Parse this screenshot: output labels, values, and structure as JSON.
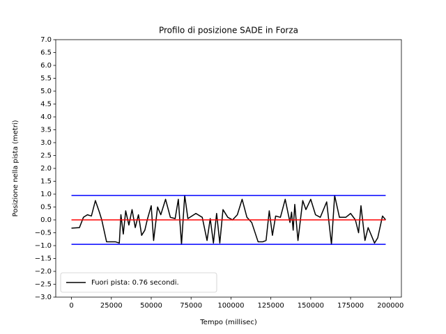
{
  "chart_data": {
    "type": "line",
    "title": "Profilo di posizione SADE in Forza",
    "xlabel": "Tempo (millisec)",
    "ylabel": "Posizione nella pista (metri)",
    "xlim": [
      -9850,
      206850
    ],
    "ylim": [
      -3,
      7
    ],
    "xticks": [
      0,
      25000,
      50000,
      75000,
      100000,
      125000,
      150000,
      175000,
      200000
    ],
    "yticks": [
      {
        "value": -3,
        "label": "−3.0"
      },
      {
        "value": -2.5,
        "label": "−2.5"
      },
      {
        "value": -2,
        "label": "−2.0"
      },
      {
        "value": -1.5,
        "label": "−1.5"
      },
      {
        "value": -1,
        "label": "−1.0"
      },
      {
        "value": -0.5,
        "label": "−0.5"
      },
      {
        "value": 0,
        "label": "0.0"
      },
      {
        "value": 0.5,
        "label": "0.5"
      },
      {
        "value": 1,
        "label": "1.0"
      },
      {
        "value": 1.5,
        "label": "1.5"
      },
      {
        "value": 2,
        "label": "2.0"
      },
      {
        "value": 2.5,
        "label": "2.5"
      },
      {
        "value": 3,
        "label": "3.0"
      },
      {
        "value": 3.5,
        "label": "3.5"
      },
      {
        "value": 4,
        "label": "4.0"
      },
      {
        "value": 4.5,
        "label": "4.5"
      },
      {
        "value": 5,
        "label": "5.0"
      },
      {
        "value": 5.5,
        "label": "5.5"
      },
      {
        "value": 6,
        "label": "6.0"
      },
      {
        "value": 6.5,
        "label": "6.5"
      },
      {
        "value": 7,
        "label": "7.0"
      }
    ],
    "legend": "lower left",
    "series": [
      {
        "name": "Fuori pista: 0.76 secondi.",
        "color": "#000000",
        "x": [
          0,
          5000,
          7500,
          10000,
          12500,
          15000,
          17500,
          19000,
          22000,
          25000,
          27500,
          30000,
          31000,
          32500,
          34000,
          36000,
          38000,
          40000,
          42000,
          44000,
          46000,
          47500,
          50000,
          51500,
          54000,
          56000,
          59000,
          62000,
          65000,
          67000,
          69000,
          71000,
          73000,
          78000,
          82000,
          85000,
          87000,
          89000,
          91000,
          93000,
          95000,
          98000,
          101000,
          104000,
          107000,
          110000,
          113000,
          117000,
          120000,
          122000,
          124000,
          126000,
          128000,
          131000,
          134000,
          136000,
          137000,
          138000,
          139000,
          140000,
          142000,
          145000,
          147000,
          150000,
          153000,
          156000,
          160000,
          163000,
          165000,
          168000,
          172000,
          175000,
          178000,
          180000,
          181500,
          184000,
          186000,
          188000,
          190000,
          192000,
          195000,
          197000
        ],
        "values": [
          -0.32,
          -0.3,
          0.1,
          0.2,
          0.15,
          0.75,
          0.3,
          0,
          -0.85,
          -0.85,
          -0.85,
          -0.9,
          0.2,
          -0.55,
          0.35,
          -0.2,
          0.4,
          -0.3,
          0.2,
          -0.6,
          -0.4,
          0,
          0.55,
          -0.8,
          0.5,
          0.2,
          0.8,
          0.1,
          0.05,
          0.8,
          -0.95,
          0.95,
          0.05,
          0.25,
          0.1,
          -0.8,
          0.05,
          -0.9,
          0.25,
          -0.9,
          0.4,
          0.1,
          0,
          0.2,
          0.8,
          0.1,
          -0.1,
          -0.85,
          -0.85,
          -0.8,
          0.35,
          -0.6,
          0.15,
          0.1,
          0.8,
          0.2,
          -0.1,
          0.3,
          -0.4,
          0.6,
          -0.8,
          0.75,
          0.4,
          0.8,
          0.2,
          0.1,
          0.7,
          -0.95,
          0.95,
          0.1,
          0.1,
          0.25,
          0,
          -0.5,
          0.55,
          -0.8,
          -0.3,
          -0.6,
          -0.9,
          -0.7,
          0.15,
          0
        ]
      },
      {
        "color": "#0000ff",
        "x": [
          0,
          197000
        ],
        "values": [
          0.95,
          0.95
        ]
      },
      {
        "color": "#0000ff",
        "x": [
          0,
          197000
        ],
        "values": [
          -0.95,
          -0.95
        ]
      },
      {
        "color": "#ff0000",
        "x": [
          0,
          197000
        ],
        "values": [
          0,
          0
        ]
      }
    ]
  }
}
